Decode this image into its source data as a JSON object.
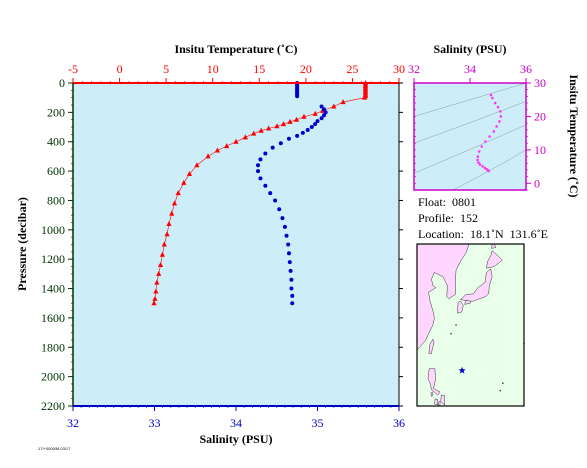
{
  "float_info": {
    "float_line": "Float:  0801",
    "profile_line": "Profile:  152",
    "location_line": "Location:  18.1˚N  131.6˚E"
  },
  "stamp_text": "17/+0000/M.03/17",
  "colors": {
    "plot_bg": "#cdeef8",
    "temperature": "#ff0000",
    "salinity": "#0000cc",
    "ts_axis": "#cc00cc",
    "ts_points": "#ff33ff",
    "map_land": "#ffd6ff",
    "map_sea": "#eaffea",
    "pressure_axis": "#003300",
    "float_marker": "#0000cc"
  },
  "chart_data": [
    {
      "type": "scatter",
      "top_axis_label": "Insitu Temperature (˚C)",
      "xlabel": "Salinity (PSU)",
      "ylabel": "Pressure (decibar)",
      "top_xlim": [
        -5,
        30
      ],
      "top_ticks": [
        "-5",
        "0",
        "5",
        "10",
        "15",
        "20",
        "25",
        "30"
      ],
      "xlim": [
        32,
        36
      ],
      "x_ticks": [
        "32",
        "33",
        "34",
        "35",
        "36"
      ],
      "ylim": [
        0,
        2200
      ],
      "y_ticks": [
        "0",
        "200",
        "400",
        "600",
        "800",
        "1000",
        "1200",
        "1400",
        "1600",
        "1800",
        "2000",
        "2200"
      ],
      "y_inverted": true,
      "series": [
        {
          "kind": "temperature",
          "marker": "triangle",
          "points": [
            [
              26.4,
              0
            ],
            [
              26.4,
              10
            ],
            [
              26.4,
              20
            ],
            [
              26.4,
              30
            ],
            [
              26.4,
              40
            ],
            [
              26.4,
              50
            ],
            [
              26.4,
              60
            ],
            [
              26.4,
              70
            ],
            [
              26.4,
              80
            ],
            [
              26.4,
              90
            ],
            [
              26.3,
              100
            ],
            [
              24.0,
              130
            ],
            [
              23.0,
              160
            ],
            [
              21.8,
              190
            ],
            [
              21.0,
              210
            ],
            [
              19.8,
              230
            ],
            [
              19.0,
              250
            ],
            [
              18.3,
              265
            ],
            [
              17.6,
              280
            ],
            [
              16.9,
              295
            ],
            [
              16.0,
              310
            ],
            [
              15.2,
              325
            ],
            [
              14.4,
              345
            ],
            [
              13.5,
              370
            ],
            [
              12.5,
              400
            ],
            [
              11.5,
              430
            ],
            [
              10.5,
              460
            ],
            [
              9.5,
              500
            ],
            [
              8.3,
              560
            ],
            [
              7.5,
              620
            ],
            [
              6.9,
              680
            ],
            [
              6.3,
              750
            ],
            [
              5.9,
              820
            ],
            [
              5.6,
              890
            ],
            [
              5.3,
              960
            ],
            [
              5.1,
              1030
            ],
            [
              4.8,
              1100
            ],
            [
              4.6,
              1170
            ],
            [
              4.4,
              1240
            ],
            [
              4.2,
              1300
            ],
            [
              4.0,
              1360
            ],
            [
              3.9,
              1420
            ],
            [
              3.8,
              1470
            ],
            [
              3.7,
              1500
            ]
          ]
        },
        {
          "kind": "salinity",
          "marker": "circle",
          "points": [
            [
              34.75,
              0
            ],
            [
              34.75,
              10
            ],
            [
              34.75,
              20
            ],
            [
              34.75,
              30
            ],
            [
              34.75,
              40
            ],
            [
              34.75,
              50
            ],
            [
              34.75,
              60
            ],
            [
              34.75,
              70
            ],
            [
              34.75,
              80
            ],
            [
              34.75,
              90
            ],
            [
              35.05,
              160
            ],
            [
              35.08,
              180
            ],
            [
              35.1,
              200
            ],
            [
              35.08,
              220
            ],
            [
              35.05,
              240
            ],
            [
              35.0,
              260
            ],
            [
              34.97,
              280
            ],
            [
              34.93,
              300
            ],
            [
              34.88,
              320
            ],
            [
              34.82,
              340
            ],
            [
              34.75,
              360
            ],
            [
              34.65,
              380
            ],
            [
              34.55,
              410
            ],
            [
              34.45,
              440
            ],
            [
              34.36,
              480
            ],
            [
              34.3,
              520
            ],
            [
              34.27,
              560
            ],
            [
              34.27,
              600
            ],
            [
              34.3,
              650
            ],
            [
              34.36,
              700
            ],
            [
              34.42,
              750
            ],
            [
              34.48,
              800
            ],
            [
              34.53,
              860
            ],
            [
              34.57,
              920
            ],
            [
              34.6,
              980
            ],
            [
              34.62,
              1040
            ],
            [
              34.64,
              1100
            ],
            [
              34.65,
              1160
            ],
            [
              34.66,
              1220
            ],
            [
              34.67,
              1280
            ],
            [
              34.68,
              1340
            ],
            [
              34.68,
              1400
            ],
            [
              34.69,
              1450
            ],
            [
              34.69,
              1500
            ]
          ]
        }
      ]
    },
    {
      "type": "scatter",
      "top_axis_label": "Salinity (PSU)",
      "right_axis_label": "Insitu Temperature (˚C)",
      "top_xlim": [
        32,
        36
      ],
      "top_ticks": [
        "32",
        "34",
        "36"
      ],
      "ylim": [
        -2,
        30
      ],
      "y_ticks": [
        "0",
        "10",
        "20",
        "30"
      ],
      "density_contours": true,
      "points": [
        [
          34.75,
          26.4
        ],
        [
          34.8,
          25.5
        ],
        [
          34.9,
          24.0
        ],
        [
          35.0,
          22.8
        ],
        [
          35.08,
          21.5
        ],
        [
          35.1,
          20.0
        ],
        [
          35.05,
          18.5
        ],
        [
          34.95,
          17.0
        ],
        [
          34.85,
          15.5
        ],
        [
          34.7,
          14.0
        ],
        [
          34.55,
          12.5
        ],
        [
          34.42,
          11.0
        ],
        [
          34.33,
          9.5
        ],
        [
          34.28,
          8.0
        ],
        [
          34.27,
          7.0
        ],
        [
          34.3,
          6.2
        ],
        [
          34.36,
          5.6
        ],
        [
          34.45,
          5.1
        ],
        [
          34.53,
          4.6
        ],
        [
          34.6,
          4.2
        ],
        [
          34.64,
          3.9
        ],
        [
          34.67,
          3.7
        ]
      ]
    }
  ],
  "map": {
    "float_marker": "star",
    "float_lon": 131.6,
    "float_lat": 18.1,
    "lon_range": [
      116,
      153
    ],
    "lat_range": [
      10,
      47
    ]
  }
}
